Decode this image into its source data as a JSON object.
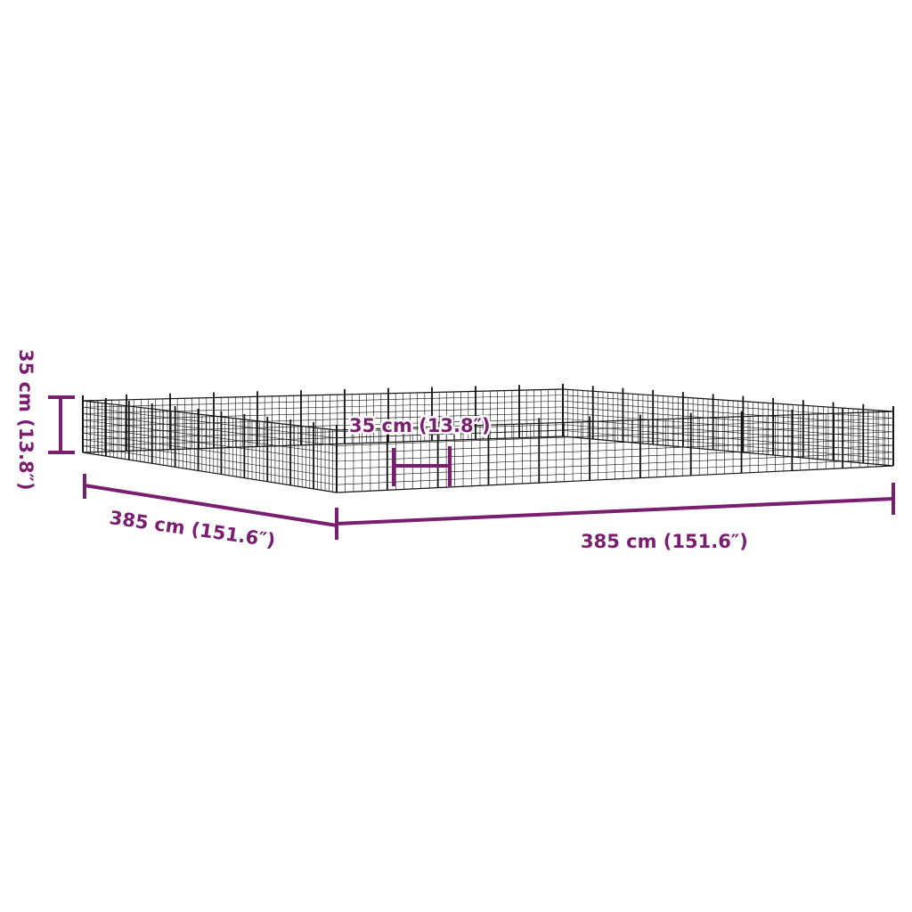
{
  "colors": {
    "dimension": "#7a1f6f",
    "product": "#111111",
    "background": "#ffffff"
  },
  "dimensions": {
    "height": "35 cm (13.8″)",
    "panel_width": "35 cm (13.8″)",
    "depth": "385 cm (151.6″)",
    "width": "385 cm (151.6″)"
  }
}
